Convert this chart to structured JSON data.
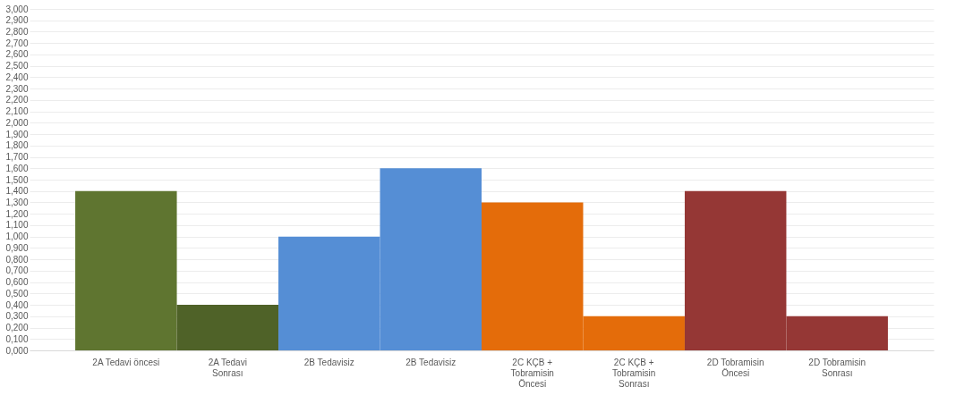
{
  "chart_data": {
    "type": "bar",
    "categories": [
      "2A Tedavi öncesi",
      "2A Tedavi Sonrası",
      "2B Tedavisiz",
      "2B Tedavisiz",
      "2C KÇB + Tobramisin Öncesi",
      "2C KÇB + Tobramisin Sonrası",
      "2D Tobramisin Öncesi",
      "2D Tobramisin Sonrası"
    ],
    "values": [
      1.4,
      0.4,
      1.0,
      1.6,
      1.3,
      0.3,
      1.4,
      0.3
    ],
    "colors": [
      "#5f7530",
      "#4f6228",
      "#558ed5",
      "#558ed5",
      "#e46c0a",
      "#e46c0a",
      "#953735",
      "#953735"
    ],
    "ylim": [
      0,
      3.0
    ],
    "yticks": [
      {
        "value": 0,
        "label": "0,000"
      },
      {
        "value": 0.1,
        "label": "0,100"
      },
      {
        "value": 0.2,
        "label": "0,200"
      },
      {
        "value": 0.3,
        "label": "0,300"
      },
      {
        "value": 0.4,
        "label": "0,400"
      },
      {
        "value": 0.5,
        "label": "0,500"
      },
      {
        "value": 0.6,
        "label": "0,600"
      },
      {
        "value": 0.7,
        "label": "0,700"
      },
      {
        "value": 0.8,
        "label": "0,800"
      },
      {
        "value": 0.9,
        "label": "0,900"
      },
      {
        "value": 1.0,
        "label": "1,000"
      },
      {
        "value": 1.1,
        "label": "1,100"
      },
      {
        "value": 1.2,
        "label": "1,200"
      },
      {
        "value": 1.3,
        "label": "1,300"
      },
      {
        "value": 1.4,
        "label": "1,400"
      },
      {
        "value": 1.5,
        "label": "1,500"
      },
      {
        "value": 1.6,
        "label": "1,600"
      },
      {
        "value": 1.7,
        "label": "1,700"
      },
      {
        "value": 1.8,
        "label": "1,800"
      },
      {
        "value": 1.9,
        "label": "1,900"
      },
      {
        "value": 2.0,
        "label": "2,000"
      },
      {
        "value": 2.1,
        "label": "2,100"
      },
      {
        "value": 2.2,
        "label": "2,200"
      },
      {
        "value": 2.3,
        "label": "2,300"
      },
      {
        "value": 2.4,
        "label": "2,400"
      },
      {
        "value": 2.5,
        "label": "2,500"
      },
      {
        "value": 2.6,
        "label": "2,600"
      },
      {
        "value": 2.7,
        "label": "2,700"
      },
      {
        "value": 2.8,
        "label": "2,800"
      },
      {
        "value": 2.9,
        "label": "2,900"
      },
      {
        "value": 3.0,
        "label": "3,000"
      }
    ],
    "grid": "y",
    "legend": false
  }
}
